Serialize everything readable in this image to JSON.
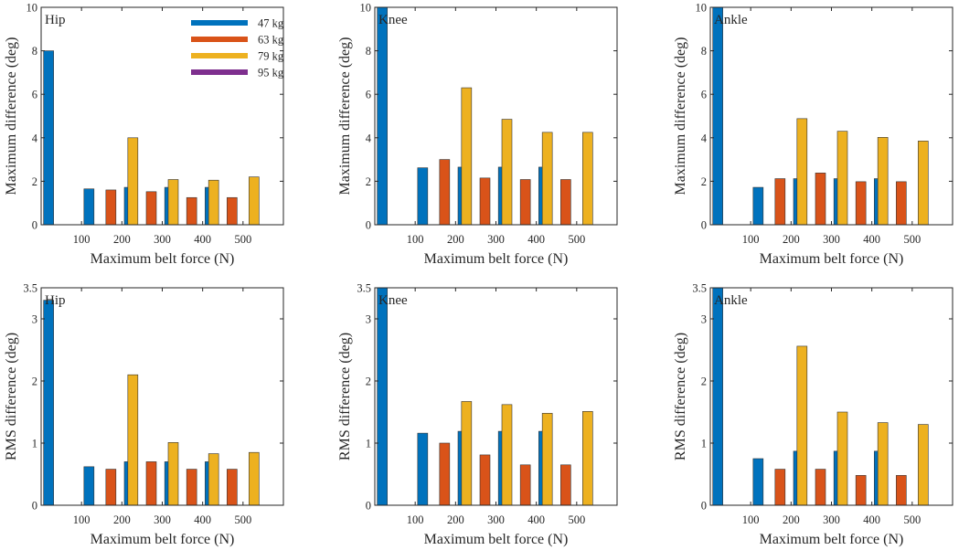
{
  "figure": {
    "legend": [
      {
        "label": "47 kg",
        "color": "#0072BD"
      },
      {
        "label": "63 kg",
        "color": "#D95319"
      },
      {
        "label": "79 kg",
        "color": "#EDB120"
      },
      {
        "label": "95 kg",
        "color": "#7E2F8E"
      }
    ]
  },
  "chart_data": [
    {
      "type": "bar",
      "title": "Hip",
      "xlabel": "Maximum belt force (N)",
      "ylabel": "Maximum difference (deg)",
      "ylim": [
        0,
        10
      ],
      "yticks": [
        0,
        2,
        4,
        6,
        8,
        10
      ],
      "ytick_labels": [
        "0",
        "2",
        "4",
        "6",
        "8",
        "10"
      ],
      "categories": [
        "100",
        "200",
        "300",
        "400",
        "500"
      ],
      "series": [
        {
          "name": "47 kg",
          "values": [
            8.0,
            1.65,
            1.72,
            1.72,
            1.72
          ]
        },
        {
          "name": "63 kg",
          "values": [
            0,
            1.6,
            1.52,
            1.25,
            1.25
          ]
        },
        {
          "name": "79 kg",
          "values": [
            0,
            4.0,
            2.08,
            2.05,
            2.2
          ]
        },
        {
          "name": "95 kg",
          "values": [
            0,
            0,
            0,
            0,
            0
          ]
        }
      ]
    },
    {
      "type": "bar",
      "title": "Knee",
      "xlabel": "Maximum belt force (N)",
      "ylabel": "Maximum difference (deg)",
      "ylim": [
        0,
        10
      ],
      "yticks": [
        0,
        2,
        4,
        6,
        8,
        10
      ],
      "ytick_labels": [
        "0",
        "2",
        "4",
        "6",
        "8",
        "10"
      ],
      "categories": [
        "100",
        "200",
        "300",
        "400",
        "500"
      ],
      "series": [
        {
          "name": "47 kg",
          "values": [
            10,
            2.62,
            2.65,
            2.65,
            2.65
          ]
        },
        {
          "name": "63 kg",
          "values": [
            0,
            3.0,
            2.15,
            2.08,
            2.08
          ]
        },
        {
          "name": "79 kg",
          "values": [
            0,
            6.3,
            4.85,
            4.25,
            4.25
          ]
        },
        {
          "name": "95 kg",
          "values": [
            0,
            0,
            0,
            0,
            0
          ]
        }
      ]
    },
    {
      "type": "bar",
      "title": "Ankle",
      "xlabel": "Maximum belt force (N)",
      "ylabel": "Maximum difference (deg)",
      "ylim": [
        0,
        10
      ],
      "yticks": [
        0,
        2,
        4,
        6,
        8,
        10
      ],
      "ytick_labels": [
        "0",
        "2",
        "4",
        "6",
        "8",
        "10"
      ],
      "categories": [
        "100",
        "200",
        "300",
        "400",
        "500"
      ],
      "series": [
        {
          "name": "47 kg",
          "values": [
            10,
            1.72,
            2.12,
            2.12,
            2.12
          ]
        },
        {
          "name": "63 kg",
          "values": [
            0,
            2.12,
            2.38,
            1.98,
            1.98
          ]
        },
        {
          "name": "79 kg",
          "values": [
            0,
            4.88,
            4.3,
            4.02,
            3.85
          ]
        },
        {
          "name": "95 kg",
          "values": [
            0,
            0,
            0,
            0,
            0
          ]
        }
      ]
    },
    {
      "type": "bar",
      "title": "Hip",
      "xlabel": "Maximum belt force (N)",
      "ylabel": "RMS difference (deg)",
      "ylim": [
        0,
        3.5
      ],
      "yticks": [
        0,
        1,
        2,
        3,
        3.5
      ],
      "ytick_labels": [
        "0",
        "1",
        "2",
        "3",
        "3.5"
      ],
      "categories": [
        "100",
        "200",
        "300",
        "400",
        "500"
      ],
      "series": [
        {
          "name": "47 kg",
          "values": [
            3.3,
            0.62,
            0.7,
            0.7,
            0.7
          ]
        },
        {
          "name": "63 kg",
          "values": [
            0,
            0.58,
            0.7,
            0.58,
            0.58
          ]
        },
        {
          "name": "79 kg",
          "values": [
            0,
            2.1,
            1.01,
            0.83,
            0.85
          ]
        },
        {
          "name": "95 kg",
          "values": [
            0,
            0,
            0,
            0,
            0
          ]
        }
      ]
    },
    {
      "type": "bar",
      "title": "Knee",
      "xlabel": "Maximum belt force (N)",
      "ylabel": "RMS difference (deg)",
      "ylim": [
        0,
        3.5
      ],
      "yticks": [
        0,
        1,
        2,
        3,
        3.5
      ],
      "ytick_labels": [
        "0",
        "1",
        "2",
        "3",
        "3.5"
      ],
      "categories": [
        "100",
        "200",
        "300",
        "400",
        "500"
      ],
      "series": [
        {
          "name": "47 kg",
          "values": [
            3.5,
            1.16,
            1.19,
            1.19,
            1.19
          ]
        },
        {
          "name": "63 kg",
          "values": [
            0,
            1.0,
            0.81,
            0.65,
            0.65
          ]
        },
        {
          "name": "79 kg",
          "values": [
            0,
            1.67,
            1.62,
            1.48,
            1.51
          ]
        },
        {
          "name": "95 kg",
          "values": [
            0,
            0,
            0,
            0,
            0
          ]
        }
      ]
    },
    {
      "type": "bar",
      "title": "Ankle",
      "xlabel": "Maximum belt force (N)",
      "ylabel": "RMS difference (deg)",
      "ylim": [
        0,
        3.5
      ],
      "yticks": [
        0,
        1,
        2,
        3,
        3.5
      ],
      "ytick_labels": [
        "0",
        "1",
        "2",
        "3",
        "3.5"
      ],
      "categories": [
        "100",
        "200",
        "300",
        "400",
        "500"
      ],
      "series": [
        {
          "name": "47 kg",
          "values": [
            3.5,
            0.75,
            0.87,
            0.87,
            0.87
          ]
        },
        {
          "name": "63 kg",
          "values": [
            0,
            0.58,
            0.58,
            0.48,
            0.48
          ]
        },
        {
          "name": "79 kg",
          "values": [
            0,
            2.56,
            1.5,
            1.33,
            1.3
          ]
        },
        {
          "name": "95 kg",
          "values": [
            0,
            0,
            0,
            0,
            0
          ]
        }
      ]
    }
  ]
}
